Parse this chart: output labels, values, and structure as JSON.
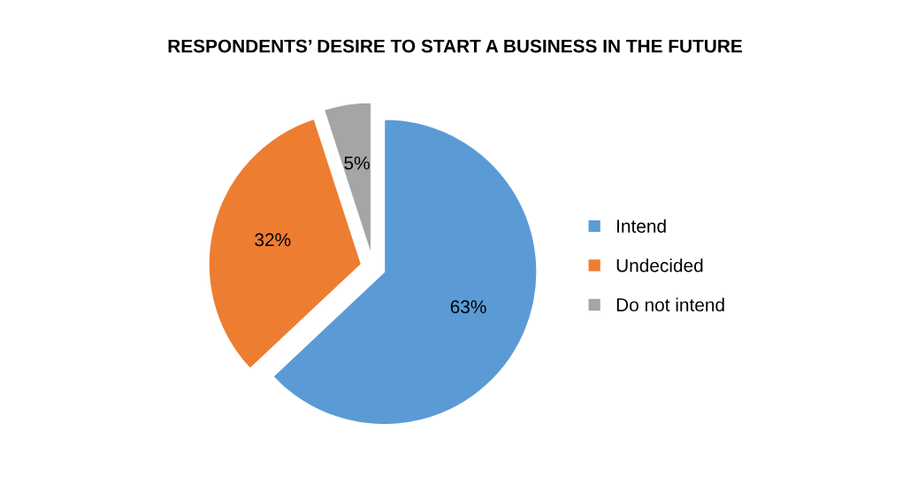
{
  "chart_data": {
    "type": "pie",
    "title": "RESPONDENTS’ DESIRE TO START A BUSINESS IN THE FUTURE",
    "categories": [
      "Intend",
      "Undecided",
      "Do not intend"
    ],
    "values": [
      63,
      32,
      5
    ],
    "value_labels": [
      "63%",
      "32%",
      "5%"
    ],
    "colors": [
      "#5b9bd5",
      "#ed7d31",
      "#a5a5a5"
    ],
    "legend": "right"
  }
}
